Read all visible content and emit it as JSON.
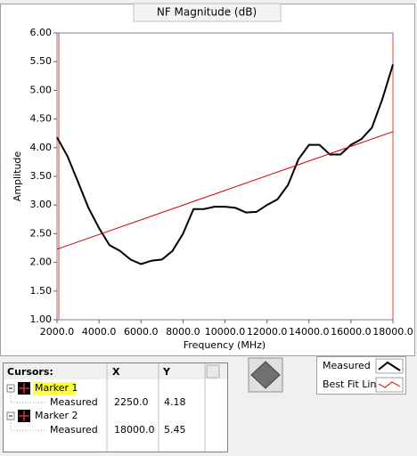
{
  "chart_data": {
    "type": "line",
    "title": "NF Magnitude (dB)",
    "xlabel": "Frequency (MHz)",
    "ylabel": "Amplitude",
    "xlim": [
      2000,
      18000
    ],
    "xticks": [
      {
        "value": 2000,
        "label": "2000.0"
      },
      {
        "value": 4000,
        "label": "4000.0"
      },
      {
        "value": 6000,
        "label": "6000.0"
      },
      {
        "value": 8000,
        "label": "8000.0"
      },
      {
        "value": 10000,
        "label": "10000.0"
      },
      {
        "value": 12000,
        "label": "12000.0"
      },
      {
        "value": 14000,
        "label": "14000.0"
      },
      {
        "value": 16000,
        "label": "16000.0"
      },
      {
        "value": 18000,
        "label": "18000.0"
      }
    ],
    "ylim": [
      1,
      6
    ],
    "yticks": [
      {
        "value": 1,
        "label": "1.00"
      },
      {
        "value": 1.5,
        "label": "1.50"
      },
      {
        "value": 2,
        "label": "2.00"
      },
      {
        "value": 2.5,
        "label": "2.50"
      },
      {
        "value": 3,
        "label": "3.00"
      },
      {
        "value": 3.5,
        "label": "3.50"
      },
      {
        "value": 4,
        "label": "4.00"
      },
      {
        "value": 4.5,
        "label": "4.50"
      },
      {
        "value": 5,
        "label": "5.00"
      },
      {
        "value": 5.5,
        "label": "5.50"
      },
      {
        "value": 6,
        "label": "6.00"
      }
    ],
    "series": [
      {
        "name": "Measured",
        "color": "#000000",
        "x": [
          2000,
          2500,
          3000,
          3500,
          4000,
          4500,
          5000,
          5500,
          6000,
          6500,
          7000,
          7500,
          8000,
          8500,
          9000,
          9500,
          10000,
          10500,
          11000,
          11500,
          12000,
          12500,
          13000,
          13500,
          14000,
          14500,
          15000,
          15500,
          16000,
          16500,
          17000,
          17500,
          18000
        ],
        "values": [
          4.18,
          3.85,
          3.4,
          2.95,
          2.6,
          2.3,
          2.2,
          2.05,
          1.97,
          2.03,
          2.05,
          2.2,
          2.5,
          2.93,
          2.93,
          2.97,
          2.97,
          2.95,
          2.87,
          2.88,
          3.0,
          3.1,
          3.35,
          3.8,
          4.05,
          4.05,
          3.88,
          3.88,
          4.05,
          4.15,
          4.35,
          4.85,
          5.45
        ]
      },
      {
        "name": "Best Fit Line",
        "color": "#cc0000",
        "x": [
          2000,
          18000
        ],
        "values": [
          2.23,
          4.28
        ]
      }
    ]
  },
  "cursors": {
    "header": [
      "Cursors:",
      "X",
      "Y"
    ],
    "rows": [
      {
        "marker": "Marker 1",
        "plot": "Measured",
        "x": "2250.0",
        "y": "4.18"
      },
      {
        "marker": "Marker 2",
        "plot": "Measured",
        "x": "18000.0",
        "y": "5.45"
      }
    ]
  }
}
